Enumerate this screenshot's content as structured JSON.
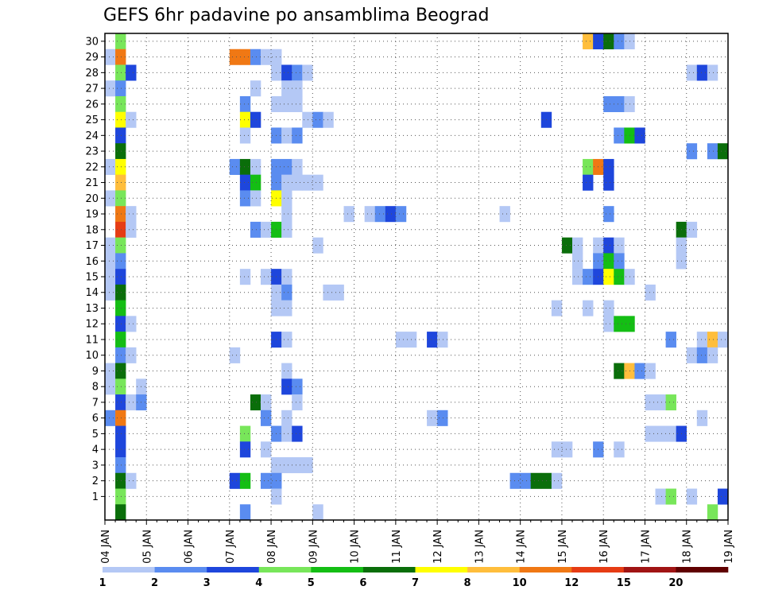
{
  "chart_data": {
    "type": "heatmap",
    "title": "GEFS 6hr padavine po ansamblima Beograd",
    "xlabel": "",
    "ylabel": "",
    "x_tick_labels": [
      "04 JAN",
      "05 JAN",
      "06 JAN",
      "07 JAN",
      "08 JAN",
      "09 JAN",
      "10 JAN",
      "11 JAN",
      "12 JAN",
      "13 JAN",
      "14 JAN",
      "15 JAN",
      "16 JAN",
      "17 JAN",
      "18 JAN",
      "19 JAN"
    ],
    "y_tick_labels": [
      "1",
      "2",
      "3",
      "4",
      "5",
      "6",
      "7",
      "8",
      "9",
      "10",
      "11",
      "12",
      "13",
      "14",
      "15",
      "16",
      "17",
      "18",
      "19",
      "20",
      "21",
      "22",
      "23",
      "24",
      "25",
      "26",
      "27",
      "28",
      "29",
      "30"
    ],
    "x_range_days": [
      0,
      15
    ],
    "y_range": [
      0,
      30
    ],
    "grid": true,
    "colorbar": {
      "tick_labels": [
        "1",
        "2",
        "3",
        "4",
        "5",
        "6",
        "7",
        "8",
        "10",
        "12",
        "15",
        "20"
      ],
      "colors": [
        "#b4c8f5",
        "#5a8cf0",
        "#1e46dc",
        "#78e65a",
        "#14be14",
        "#0a6e0a",
        "#ffff00",
        "#ffbe3c",
        "#f07814",
        "#e63c14",
        "#a01414",
        "#600000"
      ]
    },
    "cell_width_days": 0.25,
    "cells": [
      {
        "m": 30,
        "t": 0.25,
        "v": 4
      },
      {
        "m": 30,
        "t": 11.5,
        "v": 8
      },
      {
        "m": 30,
        "t": 11.75,
        "v": 3
      },
      {
        "m": 30,
        "t": 12,
        "v": 6
      },
      {
        "m": 30,
        "t": 12.25,
        "v": 2
      },
      {
        "m": 30,
        "t": 12.5,
        "v": 1
      },
      {
        "m": 29,
        "t": 0,
        "v": 1
      },
      {
        "m": 29,
        "t": 0.25,
        "v": 9
      },
      {
        "m": 29,
        "t": 3,
        "v": 9
      },
      {
        "m": 29,
        "t": 3.25,
        "v": 9
      },
      {
        "m": 29,
        "t": 3.5,
        "v": 2
      },
      {
        "m": 29,
        "t": 3.75,
        "v": 1
      },
      {
        "m": 29,
        "t": 4,
        "v": 1
      },
      {
        "m": 28,
        "t": 0.25,
        "v": 4
      },
      {
        "m": 28,
        "t": 0.5,
        "v": 3
      },
      {
        "m": 28,
        "t": 4,
        "v": 1
      },
      {
        "m": 28,
        "t": 4.25,
        "v": 3
      },
      {
        "m": 28,
        "t": 4.5,
        "v": 2
      },
      {
        "m": 28,
        "t": 4.75,
        "v": 1
      },
      {
        "m": 28,
        "t": 14,
        "v": 1
      },
      {
        "m": 28,
        "t": 14.25,
        "v": 3
      },
      {
        "m": 28,
        "t": 14.5,
        "v": 1
      },
      {
        "m": 27,
        "t": 0,
        "v": 1
      },
      {
        "m": 27,
        "t": 0.25,
        "v": 2
      },
      {
        "m": 27,
        "t": 3.5,
        "v": 1
      },
      {
        "m": 27,
        "t": 4.25,
        "v": 1
      },
      {
        "m": 27,
        "t": 4.5,
        "v": 1
      },
      {
        "m": 26,
        "t": 0.25,
        "v": 4
      },
      {
        "m": 26,
        "t": 3.25,
        "v": 2
      },
      {
        "m": 26,
        "t": 4,
        "v": 1
      },
      {
        "m": 26,
        "t": 4.25,
        "v": 1
      },
      {
        "m": 26,
        "t": 4.5,
        "v": 1
      },
      {
        "m": 26,
        "t": 12,
        "v": 2
      },
      {
        "m": 26,
        "t": 12.25,
        "v": 2
      },
      {
        "m": 26,
        "t": 12.5,
        "v": 1
      },
      {
        "m": 25,
        "t": 0.25,
        "v": 7
      },
      {
        "m": 25,
        "t": 0.5,
        "v": 1
      },
      {
        "m": 25,
        "t": 3.25,
        "v": 7
      },
      {
        "m": 25,
        "t": 3.5,
        "v": 3
      },
      {
        "m": 25,
        "t": 4.75,
        "v": 1
      },
      {
        "m": 25,
        "t": 5,
        "v": 2
      },
      {
        "m": 25,
        "t": 5.25,
        "v": 1
      },
      {
        "m": 25,
        "t": 10.5,
        "v": 3
      },
      {
        "m": 24,
        "t": 0.25,
        "v": 3
      },
      {
        "m": 24,
        "t": 3.25,
        "v": 1
      },
      {
        "m": 24,
        "t": 4,
        "v": 2
      },
      {
        "m": 24,
        "t": 4.25,
        "v": 1
      },
      {
        "m": 24,
        "t": 4.5,
        "v": 2
      },
      {
        "m": 24,
        "t": 12.25,
        "v": 2
      },
      {
        "m": 24,
        "t": 12.5,
        "v": 5
      },
      {
        "m": 24,
        "t": 12.75,
        "v": 3
      },
      {
        "m": 23,
        "t": 0.25,
        "v": 6
      },
      {
        "m": 23,
        "t": 14,
        "v": 2
      },
      {
        "m": 23,
        "t": 14.5,
        "v": 2
      },
      {
        "m": 23,
        "t": 14.75,
        "v": 6
      },
      {
        "m": 22,
        "t": 0,
        "v": 1
      },
      {
        "m": 22,
        "t": 0.25,
        "v": 7
      },
      {
        "m": 22,
        "t": 3,
        "v": 2
      },
      {
        "m": 22,
        "t": 3.25,
        "v": 6
      },
      {
        "m": 22,
        "t": 3.5,
        "v": 1
      },
      {
        "m": 22,
        "t": 4,
        "v": 2
      },
      {
        "m": 22,
        "t": 4.25,
        "v": 2
      },
      {
        "m": 22,
        "t": 4.5,
        "v": 1
      },
      {
        "m": 22,
        "t": 11.5,
        "v": 4
      },
      {
        "m": 22,
        "t": 11.75,
        "v": 9
      },
      {
        "m": 22,
        "t": 12,
        "v": 3
      },
      {
        "m": 21,
        "t": 0.25,
        "v": 8
      },
      {
        "m": 21,
        "t": 3.25,
        "v": 3
      },
      {
        "m": 21,
        "t": 3.5,
        "v": 5
      },
      {
        "m": 21,
        "t": 4,
        "v": 2
      },
      {
        "m": 21,
        "t": 4.25,
        "v": 1
      },
      {
        "m": 21,
        "t": 4.5,
        "v": 1
      },
      {
        "m": 21,
        "t": 4.75,
        "v": 1
      },
      {
        "m": 21,
        "t": 5,
        "v": 1
      },
      {
        "m": 21,
        "t": 11.5,
        "v": 3
      },
      {
        "m": 21,
        "t": 12,
        "v": 3
      },
      {
        "m": 20,
        "t": 0,
        "v": 1
      },
      {
        "m": 20,
        "t": 0.25,
        "v": 4
      },
      {
        "m": 20,
        "t": 3.25,
        "v": 2
      },
      {
        "m": 20,
        "t": 3.5,
        "v": 1
      },
      {
        "m": 20,
        "t": 4,
        "v": 7
      },
      {
        "m": 20,
        "t": 4.25,
        "v": 1
      },
      {
        "m": 19,
        "t": 0.25,
        "v": 9
      },
      {
        "m": 19,
        "t": 0.5,
        "v": 1
      },
      {
        "m": 19,
        "t": 4.25,
        "v": 1
      },
      {
        "m": 19,
        "t": 5.75,
        "v": 1
      },
      {
        "m": 19,
        "t": 6.25,
        "v": 1
      },
      {
        "m": 19,
        "t": 6.5,
        "v": 2
      },
      {
        "m": 19,
        "t": 6.75,
        "v": 3
      },
      {
        "m": 19,
        "t": 7,
        "v": 2
      },
      {
        "m": 19,
        "t": 9.5,
        "v": 1
      },
      {
        "m": 19,
        "t": 12,
        "v": 2
      },
      {
        "m": 18,
        "t": 0.25,
        "v": 10
      },
      {
        "m": 18,
        "t": 0.5,
        "v": 1
      },
      {
        "m": 18,
        "t": 3.5,
        "v": 2
      },
      {
        "m": 18,
        "t": 3.75,
        "v": 1
      },
      {
        "m": 18,
        "t": 4,
        "v": 5
      },
      {
        "m": 18,
        "t": 4.25,
        "v": 1
      },
      {
        "m": 18,
        "t": 13.75,
        "v": 6
      },
      {
        "m": 18,
        "t": 14,
        "v": 1
      },
      {
        "m": 17,
        "t": 0,
        "v": 1
      },
      {
        "m": 17,
        "t": 0.25,
        "v": 4
      },
      {
        "m": 17,
        "t": 5,
        "v": 1
      },
      {
        "m": 17,
        "t": 11,
        "v": 6
      },
      {
        "m": 17,
        "t": 11.25,
        "v": 1
      },
      {
        "m": 17,
        "t": 11.75,
        "v": 1
      },
      {
        "m": 17,
        "t": 12,
        "v": 3
      },
      {
        "m": 17,
        "t": 12.25,
        "v": 1
      },
      {
        "m": 17,
        "t": 13.75,
        "v": 1
      },
      {
        "m": 16,
        "t": 0,
        "v": 1
      },
      {
        "m": 16,
        "t": 0.25,
        "v": 2
      },
      {
        "m": 16,
        "t": 11.25,
        "v": 1
      },
      {
        "m": 16,
        "t": 11.75,
        "v": 2
      },
      {
        "m": 16,
        "t": 12,
        "v": 5
      },
      {
        "m": 16,
        "t": 12.25,
        "v": 2
      },
      {
        "m": 16,
        "t": 13.75,
        "v": 1
      },
      {
        "m": 15,
        "t": 0,
        "v": 1
      },
      {
        "m": 15,
        "t": 0.25,
        "v": 3
      },
      {
        "m": 15,
        "t": 3.25,
        "v": 1
      },
      {
        "m": 15,
        "t": 3.75,
        "v": 1
      },
      {
        "m": 15,
        "t": 4,
        "v": 3
      },
      {
        "m": 15,
        "t": 4.25,
        "v": 1
      },
      {
        "m": 15,
        "t": 11.25,
        "v": 1
      },
      {
        "m": 15,
        "t": 11.5,
        "v": 2
      },
      {
        "m": 15,
        "t": 11.75,
        "v": 3
      },
      {
        "m": 15,
        "t": 12,
        "v": 7
      },
      {
        "m": 15,
        "t": 12.25,
        "v": 5
      },
      {
        "m": 15,
        "t": 12.5,
        "v": 1
      },
      {
        "m": 14,
        "t": 0,
        "v": 1
      },
      {
        "m": 14,
        "t": 0.25,
        "v": 6
      },
      {
        "m": 14,
        "t": 4,
        "v": 1
      },
      {
        "m": 14,
        "t": 4.25,
        "v": 2
      },
      {
        "m": 14,
        "t": 5.25,
        "v": 1
      },
      {
        "m": 14,
        "t": 5.5,
        "v": 1
      },
      {
        "m": 14,
        "t": 13,
        "v": 1
      },
      {
        "m": 13,
        "t": 0.25,
        "v": 5
      },
      {
        "m": 13,
        "t": 4,
        "v": 1
      },
      {
        "m": 13,
        "t": 4.25,
        "v": 1
      },
      {
        "m": 13,
        "t": 10.75,
        "v": 1
      },
      {
        "m": 13,
        "t": 11.5,
        "v": 1
      },
      {
        "m": 13,
        "t": 12,
        "v": 1
      },
      {
        "m": 12,
        "t": 0.25,
        "v": 3
      },
      {
        "m": 12,
        "t": 0.5,
        "v": 1
      },
      {
        "m": 12,
        "t": 12,
        "v": 1
      },
      {
        "m": 12,
        "t": 12.25,
        "v": 5
      },
      {
        "m": 12,
        "t": 12.5,
        "v": 5
      },
      {
        "m": 11,
        "t": 0.25,
        "v": 5
      },
      {
        "m": 11,
        "t": 4,
        "v": 3
      },
      {
        "m": 11,
        "t": 4.25,
        "v": 1
      },
      {
        "m": 11,
        "t": 7,
        "v": 1
      },
      {
        "m": 11,
        "t": 7.25,
        "v": 1
      },
      {
        "m": 11,
        "t": 7.75,
        "v": 3
      },
      {
        "m": 11,
        "t": 8,
        "v": 1
      },
      {
        "m": 11,
        "t": 13.5,
        "v": 2
      },
      {
        "m": 11,
        "t": 14.25,
        "v": 1
      },
      {
        "m": 11,
        "t": 14.5,
        "v": 8
      },
      {
        "m": 11,
        "t": 14.75,
        "v": 1
      },
      {
        "m": 10,
        "t": 0.25,
        "v": 2
      },
      {
        "m": 10,
        "t": 0.5,
        "v": 1
      },
      {
        "m": 10,
        "t": 3,
        "v": 1
      },
      {
        "m": 10,
        "t": 14,
        "v": 1
      },
      {
        "m": 10,
        "t": 14.25,
        "v": 2
      },
      {
        "m": 10,
        "t": 14.5,
        "v": 1
      },
      {
        "m": 9,
        "t": 0,
        "v": 1
      },
      {
        "m": 9,
        "t": 0.25,
        "v": 6
      },
      {
        "m": 9,
        "t": 4.25,
        "v": 1
      },
      {
        "m": 9,
        "t": 12.25,
        "v": 6
      },
      {
        "m": 9,
        "t": 12.5,
        "v": 8
      },
      {
        "m": 9,
        "t": 12.75,
        "v": 2
      },
      {
        "m": 9,
        "t": 13,
        "v": 1
      },
      {
        "m": 8,
        "t": 0,
        "v": 1
      },
      {
        "m": 8,
        "t": 0.25,
        "v": 4
      },
      {
        "m": 8,
        "t": 0.75,
        "v": 1
      },
      {
        "m": 8,
        "t": 4.25,
        "v": 3
      },
      {
        "m": 8,
        "t": 4.5,
        "v": 2
      },
      {
        "m": 7,
        "t": 0.25,
        "v": 3
      },
      {
        "m": 7,
        "t": 0.5,
        "v": 1
      },
      {
        "m": 7,
        "t": 0.75,
        "v": 2
      },
      {
        "m": 7,
        "t": 3.5,
        "v": 6
      },
      {
        "m": 7,
        "t": 3.75,
        "v": 1
      },
      {
        "m": 7,
        "t": 4.5,
        "v": 1
      },
      {
        "m": 7,
        "t": 13,
        "v": 1
      },
      {
        "m": 7,
        "t": 13.25,
        "v": 1
      },
      {
        "m": 7,
        "t": 13.5,
        "v": 4
      },
      {
        "m": 6,
        "t": 0,
        "v": 2
      },
      {
        "m": 6,
        "t": 0.25,
        "v": 9
      },
      {
        "m": 6,
        "t": 3.75,
        "v": 2
      },
      {
        "m": 6,
        "t": 4.25,
        "v": 1
      },
      {
        "m": 6,
        "t": 7.75,
        "v": 1
      },
      {
        "m": 6,
        "t": 8,
        "v": 2
      },
      {
        "m": 6,
        "t": 14.25,
        "v": 1
      },
      {
        "m": 5,
        "t": 0.25,
        "v": 3
      },
      {
        "m": 5,
        "t": 3.25,
        "v": 4
      },
      {
        "m": 5,
        "t": 4,
        "v": 2
      },
      {
        "m": 5,
        "t": 4.25,
        "v": 1
      },
      {
        "m": 5,
        "t": 4.5,
        "v": 3
      },
      {
        "m": 5,
        "t": 13,
        "v": 1
      },
      {
        "m": 5,
        "t": 13.25,
        "v": 1
      },
      {
        "m": 5,
        "t": 13.5,
        "v": 1
      },
      {
        "m": 5,
        "t": 13.75,
        "v": 3
      },
      {
        "m": 4,
        "t": 0.25,
        "v": 3
      },
      {
        "m": 4,
        "t": 3.25,
        "v": 3
      },
      {
        "m": 4,
        "t": 3.75,
        "v": 1
      },
      {
        "m": 4,
        "t": 10.75,
        "v": 1
      },
      {
        "m": 4,
        "t": 11,
        "v": 1
      },
      {
        "m": 4,
        "t": 11.75,
        "v": 2
      },
      {
        "m": 4,
        "t": 12.25,
        "v": 1
      },
      {
        "m": 3,
        "t": 0.25,
        "v": 2
      },
      {
        "m": 3,
        "t": 4,
        "v": 1
      },
      {
        "m": 3,
        "t": 4.25,
        "v": 1
      },
      {
        "m": 3,
        "t": 4.5,
        "v": 1
      },
      {
        "m": 3,
        "t": 4.75,
        "v": 1
      },
      {
        "m": 2,
        "t": 0.25,
        "v": 6
      },
      {
        "m": 2,
        "t": 0.5,
        "v": 1
      },
      {
        "m": 2,
        "t": 3,
        "v": 3
      },
      {
        "m": 2,
        "t": 3.25,
        "v": 5
      },
      {
        "m": 2,
        "t": 3.75,
        "v": 2
      },
      {
        "m": 2,
        "t": 4,
        "v": 2
      },
      {
        "m": 2,
        "t": 9.75,
        "v": 2
      },
      {
        "m": 2,
        "t": 10,
        "v": 2
      },
      {
        "m": 2,
        "t": 10.25,
        "v": 6
      },
      {
        "m": 2,
        "t": 10.5,
        "v": 6
      },
      {
        "m": 2,
        "t": 10.75,
        "v": 1
      },
      {
        "m": 1,
        "t": 0.25,
        "v": 4
      },
      {
        "m": 1,
        "t": 4,
        "v": 1
      },
      {
        "m": 1,
        "t": 13.25,
        "v": 1
      },
      {
        "m": 1,
        "t": 13.5,
        "v": 4
      },
      {
        "m": 1,
        "t": 14,
        "v": 1
      },
      {
        "m": 1,
        "t": 14.75,
        "v": 3
      },
      {
        "m": 0,
        "t": 0.25,
        "v": 6
      },
      {
        "m": 0,
        "t": 3.25,
        "v": 2
      },
      {
        "m": 0,
        "t": 5,
        "v": 1
      },
      {
        "m": 0,
        "t": 14.5,
        "v": 4
      }
    ]
  }
}
